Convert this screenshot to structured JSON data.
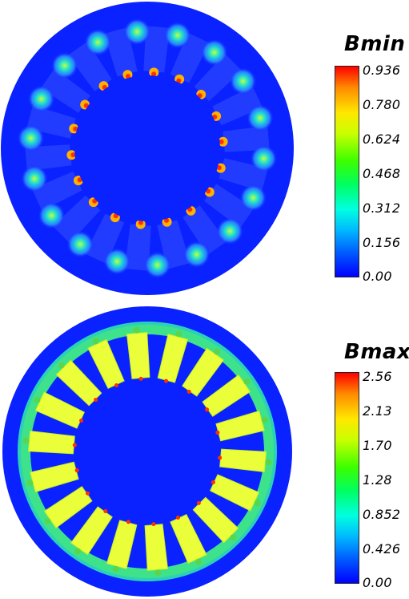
{
  "panels": [
    {
      "legend": {
        "title": "Bmin",
        "ticks": [
          "0.936",
          "0.780",
          "0.624",
          "0.468",
          "0.312",
          "0.156",
          "0.00"
        ]
      }
    },
    {
      "legend": {
        "title": "Bmax",
        "ticks": [
          "2.56",
          "2.13",
          "1.70",
          "1.28",
          "0.852",
          "0.426",
          "0.00"
        ]
      }
    }
  ],
  "colors": {
    "background_field": "#0a22ff",
    "yoke_band": "#3ee28a",
    "tooth": "#eaff3a",
    "hotspot": "#ff3000"
  }
}
